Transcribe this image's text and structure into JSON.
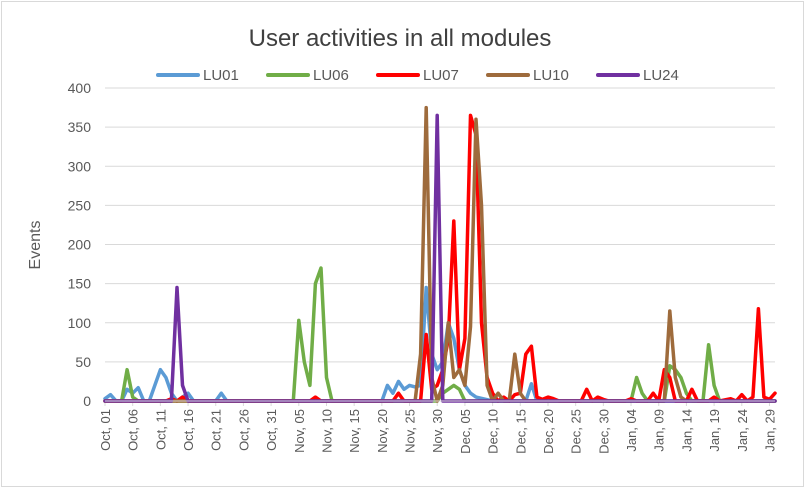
{
  "chart_data": {
    "type": "line",
    "title": "User activities in all modules",
    "xlabel": "",
    "ylabel": "Events",
    "ylim": [
      0,
      400
    ],
    "yticks": [
      0,
      50,
      100,
      150,
      200,
      250,
      300,
      350,
      400
    ],
    "x_tick_labels": [
      "Oct, 01",
      "Oct, 06",
      "Oct, 11",
      "Oct, 16",
      "Oct, 21",
      "Oct, 26",
      "Oct, 31",
      "Nov, 05",
      "Nov, 10",
      "Nov, 15",
      "Nov, 20",
      "Nov, 25",
      "Nov, 30",
      "Dec, 05",
      "Dec, 10",
      "Dec, 15",
      "Dec, 20",
      "Dec, 25",
      "Dec, 30",
      "Jan, 04",
      "Jan, 09",
      "Jan, 14",
      "Jan, 19",
      "Jan, 24",
      "Jan, 29"
    ],
    "x_tick_step_days": 5,
    "total_days": 122,
    "grid": "horizontal",
    "legend_position": "top",
    "series": [
      {
        "name": "LU01",
        "color": "#5B9BD5",
        "points": [
          [
            0,
            3
          ],
          [
            1,
            8
          ],
          [
            2,
            0
          ],
          [
            3,
            0
          ],
          [
            4,
            15
          ],
          [
            5,
            10
          ],
          [
            6,
            17
          ],
          [
            7,
            0
          ],
          [
            8,
            0
          ],
          [
            9,
            20
          ],
          [
            10,
            40
          ],
          [
            11,
            30
          ],
          [
            12,
            10
          ],
          [
            13,
            0
          ],
          [
            14,
            5
          ],
          [
            15,
            10
          ],
          [
            16,
            0
          ],
          [
            20,
            0
          ],
          [
            21,
            10
          ],
          [
            22,
            0
          ],
          [
            50,
            0
          ],
          [
            51,
            20
          ],
          [
            52,
            10
          ],
          [
            53,
            25
          ],
          [
            54,
            15
          ],
          [
            55,
            20
          ],
          [
            56,
            18
          ],
          [
            57,
            20
          ],
          [
            58,
            145
          ],
          [
            59,
            60
          ],
          [
            60,
            40
          ],
          [
            61,
            50
          ],
          [
            62,
            100
          ],
          [
            63,
            80
          ],
          [
            64,
            40
          ],
          [
            65,
            20
          ],
          [
            66,
            10
          ],
          [
            67,
            5
          ],
          [
            70,
            0
          ],
          [
            76,
            0
          ],
          [
            77,
            22
          ],
          [
            78,
            0
          ],
          [
            121,
            0
          ]
        ]
      },
      {
        "name": "LU06",
        "color": "#70AD47",
        "points": [
          [
            0,
            0
          ],
          [
            3,
            0
          ],
          [
            4,
            40
          ],
          [
            5,
            5
          ],
          [
            6,
            0
          ],
          [
            34,
            0
          ],
          [
            35,
            103
          ],
          [
            36,
            50
          ],
          [
            37,
            20
          ],
          [
            38,
            150
          ],
          [
            39,
            170
          ],
          [
            40,
            30
          ],
          [
            41,
            0
          ],
          [
            60,
            0
          ],
          [
            61,
            10
          ],
          [
            62,
            15
          ],
          [
            63,
            20
          ],
          [
            64,
            15
          ],
          [
            65,
            0
          ],
          [
            95,
            0
          ],
          [
            96,
            30
          ],
          [
            97,
            10
          ],
          [
            98,
            0
          ],
          [
            101,
            0
          ],
          [
            102,
            45
          ],
          [
            103,
            40
          ],
          [
            104,
            30
          ],
          [
            105,
            10
          ],
          [
            106,
            0
          ],
          [
            108,
            0
          ],
          [
            109,
            72
          ],
          [
            110,
            20
          ],
          [
            111,
            0
          ],
          [
            121,
            0
          ]
        ]
      },
      {
        "name": "LU07",
        "color": "#FF0000",
        "points": [
          [
            0,
            0
          ],
          [
            11,
            0
          ],
          [
            12,
            3
          ],
          [
            13,
            0
          ],
          [
            14,
            5
          ],
          [
            15,
            0
          ],
          [
            37,
            0
          ],
          [
            38,
            5
          ],
          [
            39,
            0
          ],
          [
            52,
            0
          ],
          [
            53,
            10
          ],
          [
            54,
            0
          ],
          [
            57,
            0
          ],
          [
            58,
            85
          ],
          [
            59,
            15
          ],
          [
            60,
            20
          ],
          [
            61,
            40
          ],
          [
            62,
            80
          ],
          [
            63,
            230
          ],
          [
            64,
            40
          ],
          [
            65,
            80
          ],
          [
            66,
            365
          ],
          [
            67,
            340
          ],
          [
            68,
            100
          ],
          [
            69,
            30
          ],
          [
            70,
            10
          ],
          [
            71,
            0
          ],
          [
            72,
            5
          ],
          [
            73,
            0
          ],
          [
            74,
            8
          ],
          [
            75,
            10
          ],
          [
            76,
            60
          ],
          [
            77,
            70
          ],
          [
            78,
            5
          ],
          [
            79,
            2
          ],
          [
            80,
            5
          ],
          [
            81,
            3
          ],
          [
            82,
            0
          ],
          [
            86,
            0
          ],
          [
            87,
            15
          ],
          [
            88,
            0
          ],
          [
            89,
            5
          ],
          [
            90,
            2
          ],
          [
            91,
            0
          ],
          [
            94,
            0
          ],
          [
            95,
            3
          ],
          [
            96,
            0
          ],
          [
            98,
            0
          ],
          [
            99,
            10
          ],
          [
            100,
            0
          ],
          [
            101,
            40
          ],
          [
            102,
            30
          ],
          [
            103,
            0
          ],
          [
            105,
            0
          ],
          [
            106,
            15
          ],
          [
            107,
            0
          ],
          [
            109,
            0
          ],
          [
            110,
            5
          ],
          [
            111,
            0
          ],
          [
            113,
            3
          ],
          [
            114,
            0
          ],
          [
            115,
            8
          ],
          [
            116,
            0
          ],
          [
            117,
            5
          ],
          [
            118,
            118
          ],
          [
            119,
            5
          ],
          [
            120,
            2
          ],
          [
            121,
            10
          ]
        ]
      },
      {
        "name": "LU10",
        "color": "#9E6B3C",
        "points": [
          [
            0,
            0
          ],
          [
            56,
            0
          ],
          [
            57,
            60
          ],
          [
            58,
            375
          ],
          [
            59,
            30
          ],
          [
            60,
            0
          ],
          [
            61,
            20
          ],
          [
            62,
            100
          ],
          [
            63,
            30
          ],
          [
            64,
            40
          ],
          [
            65,
            20
          ],
          [
            66,
            95
          ],
          [
            67,
            360
          ],
          [
            68,
            250
          ],
          [
            69,
            20
          ],
          [
            70,
            0
          ],
          [
            71,
            10
          ],
          [
            72,
            0
          ],
          [
            73,
            0
          ],
          [
            74,
            60
          ],
          [
            75,
            10
          ],
          [
            76,
            0
          ],
          [
            101,
            0
          ],
          [
            102,
            115
          ],
          [
            103,
            30
          ],
          [
            104,
            5
          ],
          [
            105,
            0
          ],
          [
            121,
            0
          ]
        ]
      },
      {
        "name": "LU24",
        "color": "#7030A0",
        "points": [
          [
            0,
            0
          ],
          [
            12,
            0
          ],
          [
            13,
            145
          ],
          [
            14,
            20
          ],
          [
            15,
            0
          ],
          [
            59,
            0
          ],
          [
            60,
            365
          ],
          [
            61,
            0
          ],
          [
            121,
            0
          ]
        ]
      }
    ]
  }
}
